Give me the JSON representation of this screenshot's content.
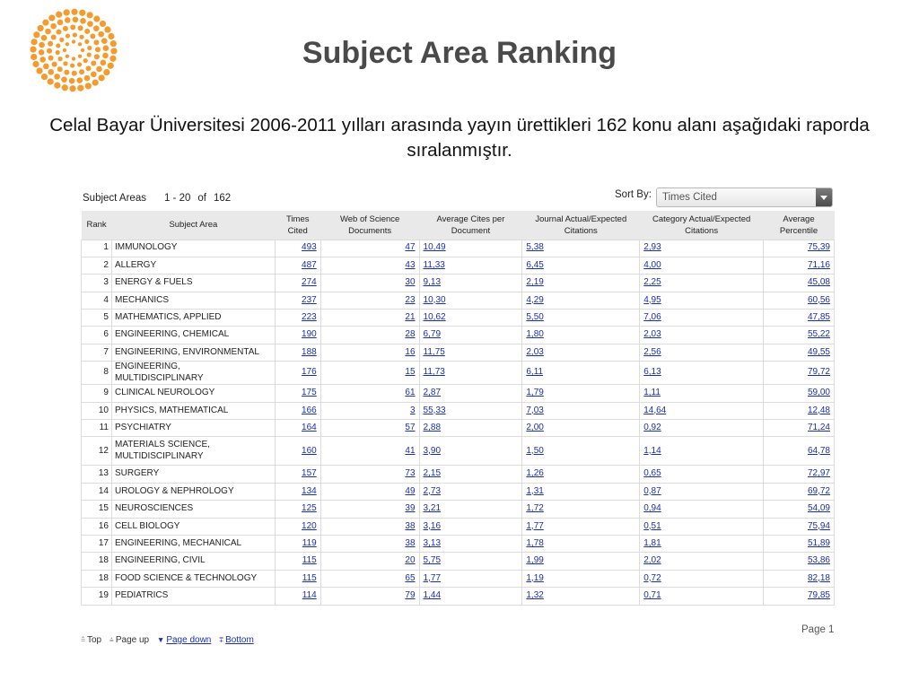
{
  "slide": {
    "title": "Subject Area Ranking",
    "subtitle": "Celal Bayar Üniversitesi 2006-2011 yılları arasında yayın ürettikleri 162 konu alanı aşağıdaki raporda sıralanmıştır.",
    "logo_icon": "sunburst-logo-icon",
    "logo_color": "#f39b2f"
  },
  "report": {
    "subject_areas_label": "Subject Areas",
    "range_text": "1 - 20",
    "of_text": "of",
    "total": "162",
    "sort_by_label": "Sort By:",
    "sort_value": "Times Cited",
    "columns": [
      "Rank",
      "Subject Area",
      "Times Cited",
      "Web of Science Documents",
      "Average Cites per Document",
      "Journal Actual/Expected Citations",
      "Category Actual/Expected Citations",
      "Average Percentile"
    ],
    "rows": [
      {
        "rank": "1",
        "subject": "IMMUNOLOGY",
        "times_cited": "493",
        "wos_docs": "47",
        "avg_cites": "10,49",
        "journal_ae": "5,38",
        "category_ae": "2,93",
        "avg_percentile": "75,39"
      },
      {
        "rank": "2",
        "subject": "ALLERGY",
        "times_cited": "487",
        "wos_docs": "43",
        "avg_cites": "11,33",
        "journal_ae": "6,45",
        "category_ae": "4,00",
        "avg_percentile": "71,16"
      },
      {
        "rank": "3",
        "subject": "ENERGY & FUELS",
        "times_cited": "274",
        "wos_docs": "30",
        "avg_cites": "9,13",
        "journal_ae": "2,19",
        "category_ae": "2,25",
        "avg_percentile": "45,08"
      },
      {
        "rank": "4",
        "subject": "MECHANICS",
        "times_cited": "237",
        "wos_docs": "23",
        "avg_cites": "10,30",
        "journal_ae": "4,29",
        "category_ae": "4,95",
        "avg_percentile": "60,56"
      },
      {
        "rank": "5",
        "subject": "MATHEMATICS, APPLIED",
        "times_cited": "223",
        "wos_docs": "21",
        "avg_cites": "10,62",
        "journal_ae": "5,50",
        "category_ae": "7,06",
        "avg_percentile": "47,85"
      },
      {
        "rank": "6",
        "subject": "ENGINEERING, CHEMICAL",
        "times_cited": "190",
        "wos_docs": "28",
        "avg_cites": "6,79",
        "journal_ae": "1,80",
        "category_ae": "2,03",
        "avg_percentile": "55,22"
      },
      {
        "rank": "7",
        "subject": "ENGINEERING, ENVIRONMENTAL",
        "times_cited": "188",
        "wos_docs": "16",
        "avg_cites": "11,75",
        "journal_ae": "2,03",
        "category_ae": "2,56",
        "avg_percentile": "49,55"
      },
      {
        "rank": "8",
        "subject": "ENGINEERING, MULTIDISCIPLINARY",
        "times_cited": "176",
        "wos_docs": "15",
        "avg_cites": "11,73",
        "journal_ae": "6,11",
        "category_ae": "6,13",
        "avg_percentile": "79,72"
      },
      {
        "rank": "9",
        "subject": "CLINICAL NEUROLOGY",
        "times_cited": "175",
        "wos_docs": "61",
        "avg_cites": "2,87",
        "journal_ae": "1,79",
        "category_ae": "1,11",
        "avg_percentile": "59,00"
      },
      {
        "rank": "10",
        "subject": "PHYSICS, MATHEMATICAL",
        "times_cited": "166",
        "wos_docs": "3",
        "avg_cites": "55,33",
        "journal_ae": "7,03",
        "category_ae": "14,64",
        "avg_percentile": "12,48"
      },
      {
        "rank": "11",
        "subject": "PSYCHIATRY",
        "times_cited": "164",
        "wos_docs": "57",
        "avg_cites": "2,88",
        "journal_ae": "2,00",
        "category_ae": "0,92",
        "avg_percentile": "71,24"
      },
      {
        "rank": "12",
        "subject": "MATERIALS SCIENCE, MULTIDISCIPLINARY",
        "times_cited": "160",
        "wos_docs": "41",
        "avg_cites": "3,90",
        "journal_ae": "1,50",
        "category_ae": "1,14",
        "avg_percentile": "64,78"
      },
      {
        "rank": "13",
        "subject": "SURGERY",
        "times_cited": "157",
        "wos_docs": "73",
        "avg_cites": "2,15",
        "journal_ae": "1,26",
        "category_ae": "0,65",
        "avg_percentile": "72,97"
      },
      {
        "rank": "14",
        "subject": "UROLOGY & NEPHROLOGY",
        "times_cited": "134",
        "wos_docs": "49",
        "avg_cites": "2,73",
        "journal_ae": "1,31",
        "category_ae": "0,87",
        "avg_percentile": "69,72"
      },
      {
        "rank": "15",
        "subject": "NEUROSCIENCES",
        "times_cited": "125",
        "wos_docs": "39",
        "avg_cites": "3,21",
        "journal_ae": "1,72",
        "category_ae": "0,94",
        "avg_percentile": "54,09"
      },
      {
        "rank": "16",
        "subject": "CELL BIOLOGY",
        "times_cited": "120",
        "wos_docs": "38",
        "avg_cites": "3,16",
        "journal_ae": "1,77",
        "category_ae": "0,51",
        "avg_percentile": "75,94"
      },
      {
        "rank": "17",
        "subject": "ENGINEERING, MECHANICAL",
        "times_cited": "119",
        "wos_docs": "38",
        "avg_cites": "3,13",
        "journal_ae": "1,78",
        "category_ae": "1,81",
        "avg_percentile": "51,89"
      },
      {
        "rank": "18",
        "subject": "ENGINEERING, CIVIL",
        "times_cited": "115",
        "wos_docs": "20",
        "avg_cites": "5,75",
        "journal_ae": "1,99",
        "category_ae": "2,02",
        "avg_percentile": "53,86"
      },
      {
        "rank": "18",
        "subject": "FOOD SCIENCE & TECHNOLOGY",
        "times_cited": "115",
        "wos_docs": "65",
        "avg_cites": "1,77",
        "journal_ae": "1,19",
        "category_ae": "0,72",
        "avg_percentile": "82,18"
      },
      {
        "rank": "19",
        "subject": "PEDIATRICS",
        "times_cited": "114",
        "wos_docs": "79",
        "avg_cites": "1,44",
        "journal_ae": "1,32",
        "category_ae": "0,71",
        "avg_percentile": "79,85"
      }
    ]
  },
  "footer": {
    "top_label": "Top",
    "page_up_label": "Page up",
    "page_down_label": "Page down",
    "bottom_label": "Bottom",
    "page_label": "Page 1"
  }
}
